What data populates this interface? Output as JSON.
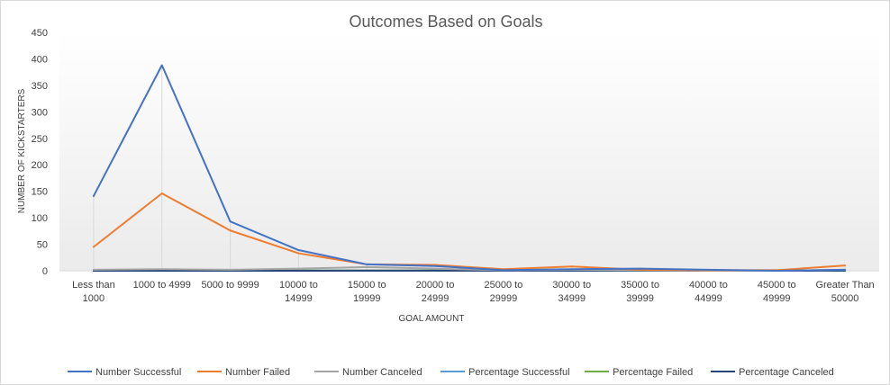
{
  "chart_data": {
    "type": "line",
    "title": "Outcomes Based on Goals",
    "xlabel": "GOAL AMOUNT",
    "ylabel": "NUMBER OF KICKSTARTERS",
    "ylim": [
      0,
      450
    ],
    "yticks": [
      0,
      50,
      100,
      150,
      200,
      250,
      300,
      350,
      400,
      450
    ],
    "grid": false,
    "legend_position": "bottom",
    "categories": [
      [
        "Less than",
        "1000"
      ],
      [
        "1000 to 4999"
      ],
      [
        "5000 to 9999"
      ],
      [
        "10000  to",
        "14999"
      ],
      [
        "15000  to",
        "19999"
      ],
      [
        "20000  to",
        "24999"
      ],
      [
        "25000  to",
        "29999"
      ],
      [
        "30000  to",
        "34999"
      ],
      [
        "35000  to",
        "39999"
      ],
      [
        "40000  to",
        "44999"
      ],
      [
        "45000  to",
        "49999"
      ],
      [
        "Greater Than",
        "50000"
      ]
    ],
    "series": [
      {
        "name": "Number Successful",
        "color": "#4472c4",
        "values": [
          141,
          388,
          93,
          39,
          12,
          9,
          1,
          3,
          4,
          2,
          0,
          2
        ]
      },
      {
        "name": "Number Failed",
        "color": "#ed7d31",
        "values": [
          45,
          146,
          76,
          33,
          12,
          11,
          3,
          8,
          2,
          1,
          1,
          10
        ]
      },
      {
        "name": "Number Canceled",
        "color": "#a5a5a5",
        "values": [
          2,
          3,
          2,
          4,
          7,
          4,
          1,
          2,
          1,
          0,
          0,
          2
        ]
      },
      {
        "name": "Percentage Successful",
        "color": "#5b9bd5",
        "values": [
          0.76,
          0.72,
          0.54,
          0.51,
          0.39,
          0.38,
          0.2,
          0.23,
          0.57,
          0.67,
          0,
          0.14
        ]
      },
      {
        "name": "Percentage Failed",
        "color": "#70ad47",
        "values": [
          0.24,
          0.27,
          0.44,
          0.43,
          0.39,
          0.46,
          0.6,
          0.62,
          0.29,
          0.33,
          1,
          0.71
        ]
      },
      {
        "name": "Percentage Canceled",
        "color": "#264478",
        "values": [
          0.01,
          0.01,
          0.01,
          0.05,
          0.23,
          0.17,
          0.2,
          0.15,
          0.14,
          0,
          0,
          0.14
        ]
      }
    ]
  }
}
